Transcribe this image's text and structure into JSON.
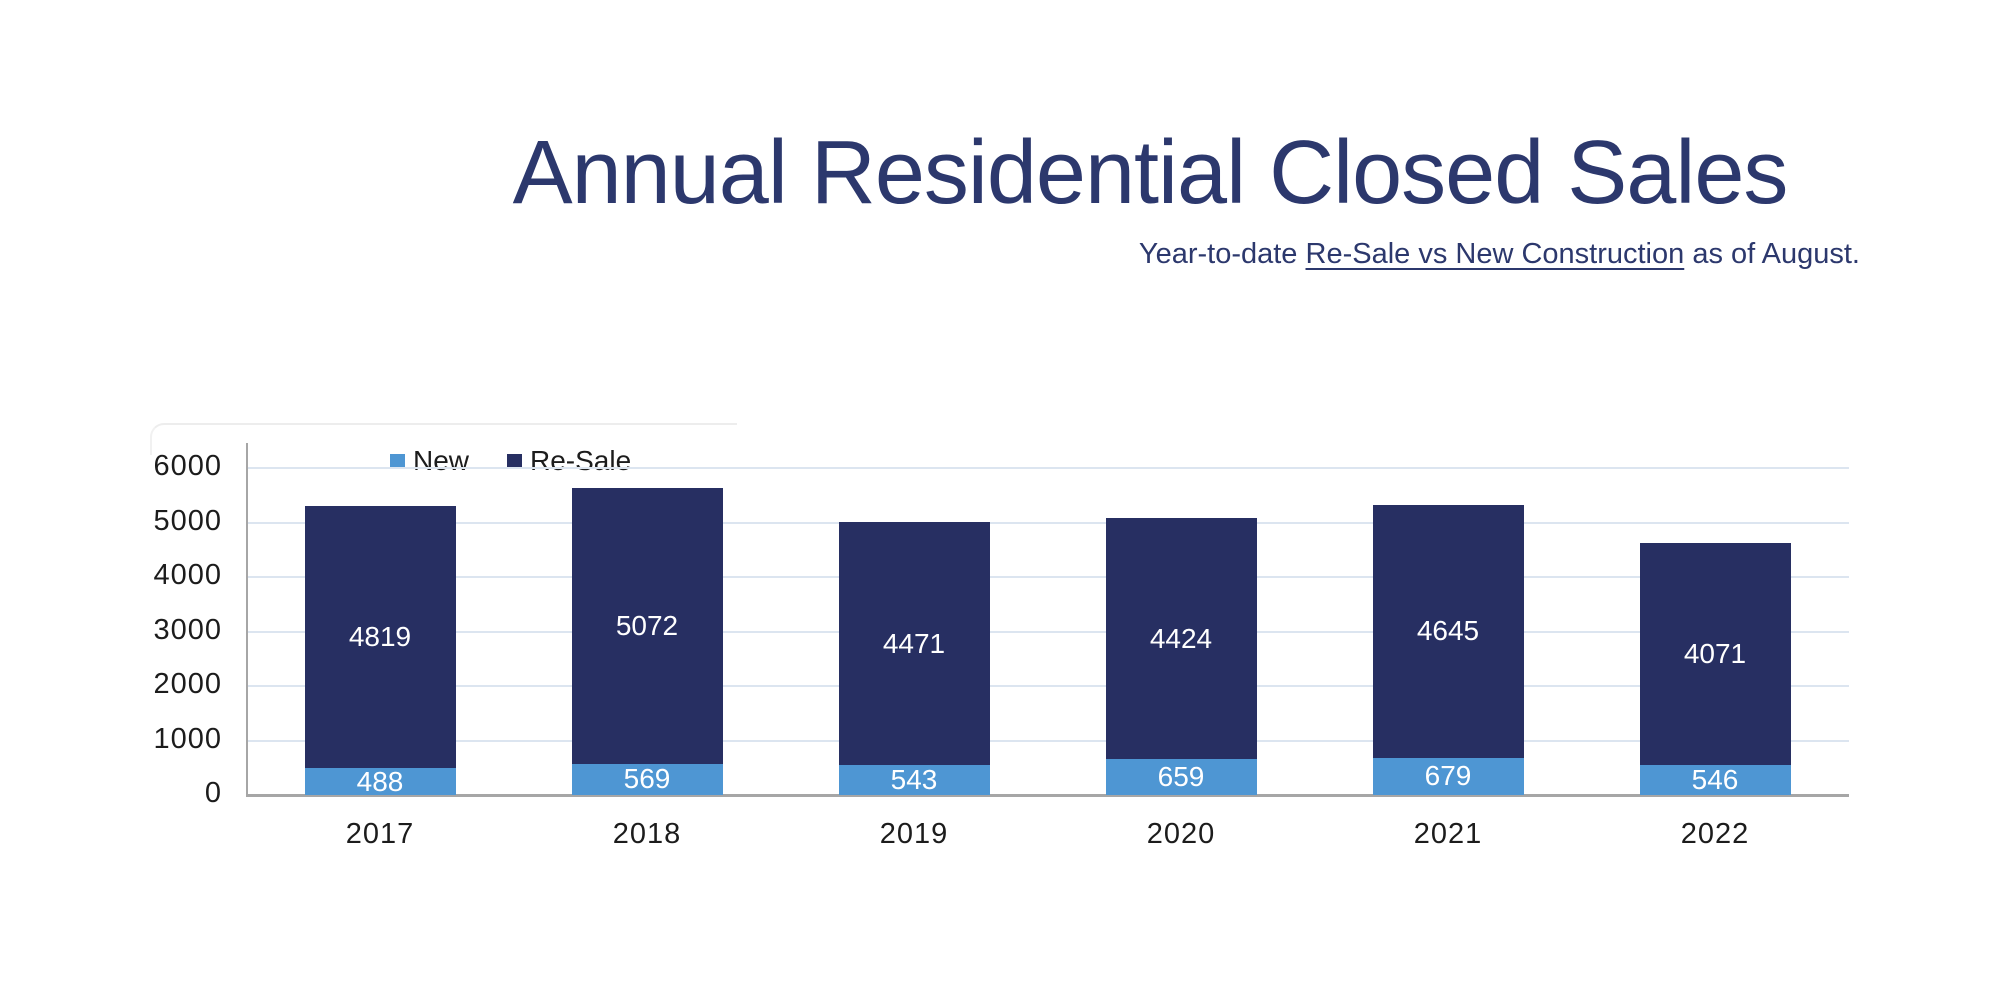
{
  "title": "Annual Residential Closed Sales",
  "subtitle": {
    "prefix": "Year-to-date ",
    "underlined": "Re-Sale vs New Construction",
    "suffix": " as of August."
  },
  "chart_data": {
    "type": "bar",
    "stacked": true,
    "title": "Annual Residential Closed Sales",
    "subtitle": "Year-to-date Re-Sale vs New Construction as of August.",
    "categories": [
      "2017",
      "2018",
      "2019",
      "2020",
      "2021",
      "2022"
    ],
    "series": [
      {
        "name": "New",
        "color": "#4E96D3",
        "values": [
          488,
          569,
          543,
          659,
          679,
          546
        ]
      },
      {
        "name": "Re-Sale",
        "color": "#272F62",
        "values": [
          4819,
          5072,
          4471,
          4424,
          4645,
          4071
        ]
      }
    ],
    "totals": [
      5307,
      5641,
      5014,
      5083,
      5324,
      4617
    ],
    "yticks": [
      0,
      1000,
      2000,
      3000,
      4000,
      5000,
      6000
    ],
    "ylim": [
      0,
      6500
    ],
    "xlabel": "",
    "ylabel": "",
    "grid": true,
    "legend_position": "top-left-inside",
    "value_labels": "inside-white"
  },
  "colors": {
    "title_text": "#2C386D",
    "axis_line": "#a6a6a6",
    "gridline": "#dce5f0",
    "tick_text": "#1c1c1c",
    "value_label_text": "#ffffff",
    "background": "#ffffff"
  }
}
